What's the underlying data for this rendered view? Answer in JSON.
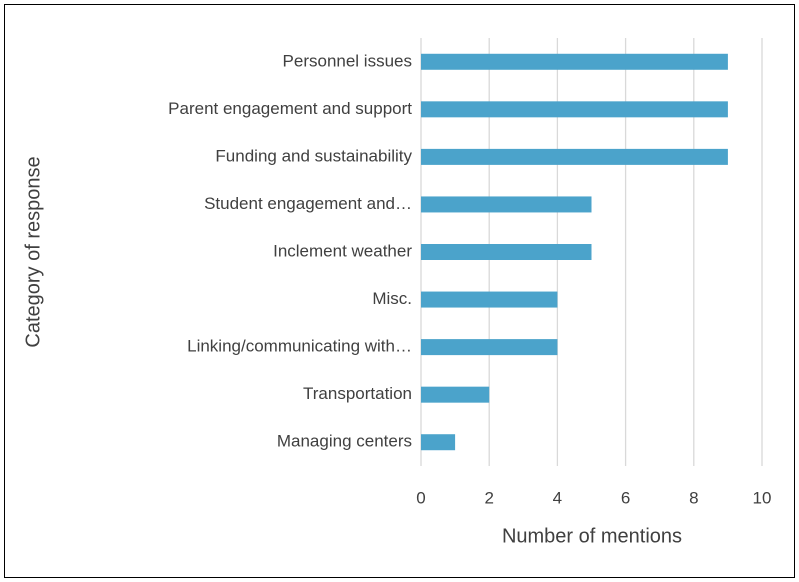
{
  "chart_data": {
    "type": "bar",
    "orientation": "horizontal",
    "categories": [
      "Personnel issues",
      "Parent engagement and support",
      "Funding and sustainability",
      "Student engagement and…",
      "Inclement weather",
      "Misc.",
      "Linking/communicating with…",
      "Transportation",
      "Managing centers"
    ],
    "values": [
      9,
      9,
      9,
      5,
      5,
      4,
      4,
      2,
      1
    ],
    "color": "#4ba3cb",
    "xlabel": "Number of mentions",
    "ylabel": "Category of response",
    "xlim": [
      0,
      10
    ],
    "xticks": [
      0,
      2,
      4,
      6,
      8,
      10
    ],
    "grid": true
  }
}
